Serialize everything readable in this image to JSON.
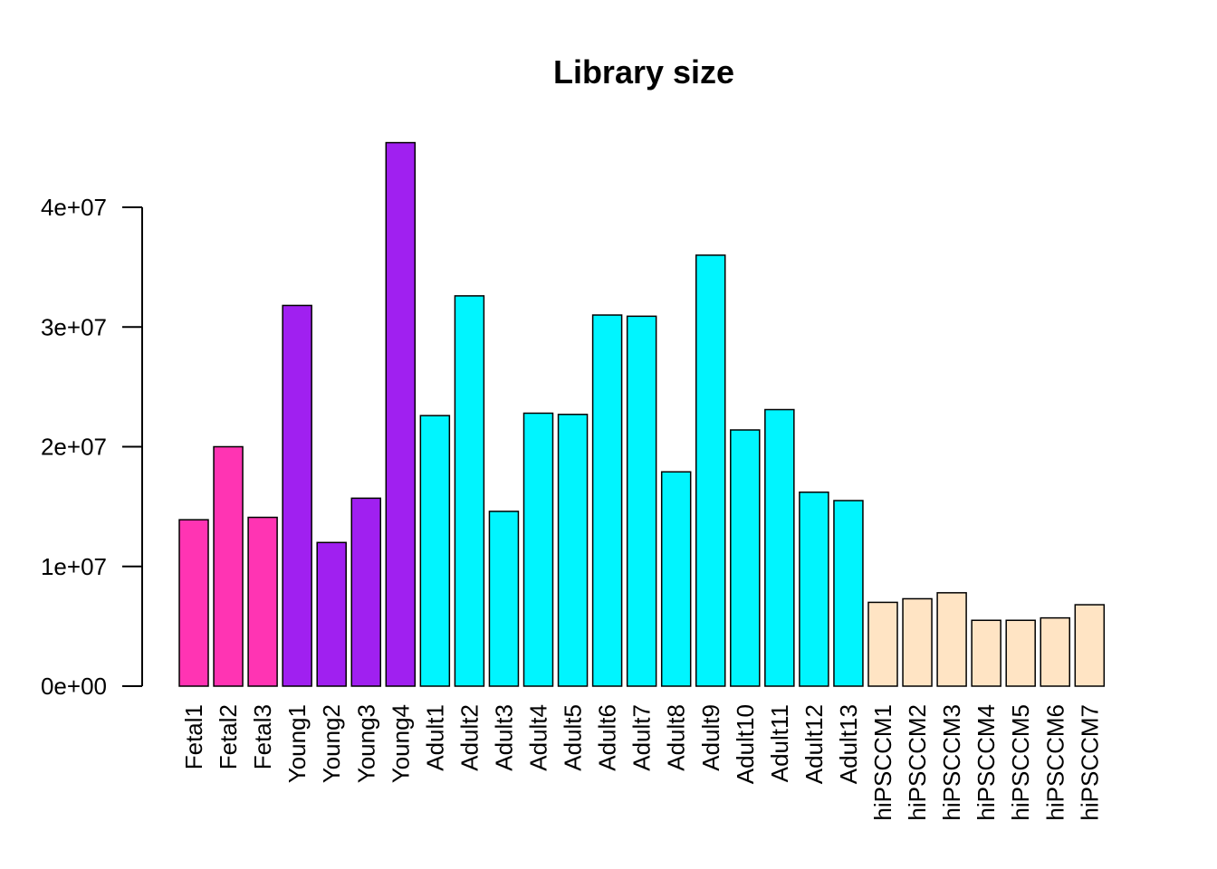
{
  "chart_data": {
    "type": "bar",
    "title": "Library size",
    "xlabel": "",
    "ylabel": "",
    "ylim": [
      0,
      45000000
    ],
    "yticks": [
      0,
      10000000,
      20000000,
      30000000,
      40000000
    ],
    "ytick_labels": [
      "0e+00",
      "1e+07",
      "2e+07",
      "3e+07",
      "4e+07"
    ],
    "categories": [
      "Fetal1",
      "Fetal2",
      "Fetal3",
      "Young1",
      "Young2",
      "Young3",
      "Young4",
      "Adult1",
      "Adult2",
      "Adult3",
      "Adult4",
      "Adult5",
      "Adult6",
      "Adult7",
      "Adult8",
      "Adult9",
      "Adult10",
      "Adult11",
      "Adult12",
      "Adult13",
      "hiPSCCM1",
      "hiPSCCM2",
      "hiPSCCM3",
      "hiPSCCM4",
      "hiPSCCM5",
      "hiPSCCM6",
      "hiPSCCM7"
    ],
    "values": [
      13900000,
      20000000,
      14100000,
      31800000,
      12000000,
      15700000,
      45400000,
      22600000,
      32600000,
      14600000,
      22800000,
      22700000,
      31000000,
      30900000,
      17900000,
      36000000,
      21400000,
      23100000,
      16200000,
      15500000,
      7000000,
      7300000,
      7800000,
      5500000,
      5500000,
      5700000,
      6800000
    ],
    "colors": [
      "#FF34B3",
      "#FF34B3",
      "#FF34B3",
      "#A020F0",
      "#A020F0",
      "#A020F0",
      "#A020F0",
      "#00F5FF",
      "#00F5FF",
      "#00F5FF",
      "#00F5FF",
      "#00F5FF",
      "#00F5FF",
      "#00F5FF",
      "#00F5FF",
      "#00F5FF",
      "#00F5FF",
      "#00F5FF",
      "#00F5FF",
      "#00F5FF",
      "#FFE4C4",
      "#FFE4C4",
      "#FFE4C4",
      "#FFE4C4",
      "#FFE4C4",
      "#FFE4C4",
      "#FFE4C4"
    ],
    "grid": false,
    "legend": "none"
  }
}
